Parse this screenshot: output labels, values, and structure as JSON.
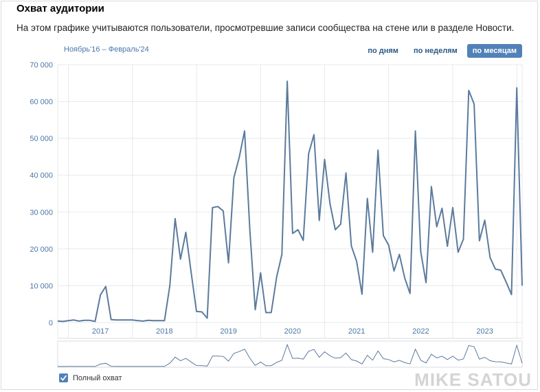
{
  "header": {
    "title": "Охват аудитории",
    "description": "На этом графике учитываются пользователи, просмотревшие записи сообщества на стене или в разделе Новости."
  },
  "period_label": "Ноябрь'16 – Февраль'24",
  "range_buttons": [
    {
      "label": "по дням",
      "active": false
    },
    {
      "label": "по неделям",
      "active": false
    },
    {
      "label": "по месяцам",
      "active": true
    }
  ],
  "legend": {
    "label": "Полный охват",
    "checked": true
  },
  "watermark": "MIKE SATOU",
  "colors": {
    "line": "#5b7a9c",
    "accent": "#5181b8",
    "grid": "#e5e9ee",
    "axis_text": "#4a76a8"
  },
  "chart_data": {
    "type": "line",
    "title": "",
    "xlabel": "",
    "ylabel": "",
    "ylim": [
      0,
      70000
    ],
    "yticks": [
      "0",
      "10 000",
      "20 000",
      "30 000",
      "40 000",
      "50 000",
      "60 000",
      "70 000"
    ],
    "xticks": [
      "2017",
      "2018",
      "2019",
      "2020",
      "2021",
      "2022",
      "2023"
    ],
    "grid": true,
    "series": [
      {
        "name": "Полный охват",
        "x": [
          "2016-11",
          "2016-12",
          "2017-01",
          "2017-02",
          "2017-03",
          "2017-04",
          "2017-05",
          "2017-06",
          "2017-07",
          "2017-08",
          "2017-09",
          "2017-10",
          "2017-11",
          "2017-12",
          "2018-01",
          "2018-02",
          "2018-03",
          "2018-04",
          "2018-05",
          "2018-06",
          "2018-07",
          "2018-08",
          "2018-09",
          "2018-10",
          "2018-11",
          "2018-12",
          "2019-01",
          "2019-02",
          "2019-03",
          "2019-04",
          "2019-05",
          "2019-06",
          "2019-07",
          "2019-08",
          "2019-09",
          "2019-10",
          "2019-11",
          "2019-12",
          "2020-01",
          "2020-02",
          "2020-03",
          "2020-04",
          "2020-05",
          "2020-06",
          "2020-07",
          "2020-08",
          "2020-09",
          "2020-10",
          "2020-11",
          "2020-12",
          "2021-01",
          "2021-02",
          "2021-03",
          "2021-04",
          "2021-05",
          "2021-06",
          "2021-07",
          "2021-08",
          "2021-09",
          "2021-10",
          "2021-11",
          "2021-12",
          "2022-01",
          "2022-02",
          "2022-03",
          "2022-04",
          "2022-05",
          "2022-06",
          "2022-07",
          "2022-08",
          "2022-09",
          "2022-10",
          "2022-11",
          "2022-12",
          "2023-01",
          "2023-02",
          "2023-03",
          "2023-04",
          "2023-05",
          "2023-06",
          "2023-07",
          "2023-08",
          "2023-09",
          "2023-10",
          "2023-11",
          "2023-12",
          "2024-01",
          "2024-02"
        ],
        "values": [
          400,
          300,
          500,
          700,
          400,
          600,
          600,
          300,
          7500,
          9800,
          800,
          700,
          700,
          700,
          700,
          500,
          400,
          600,
          500,
          500,
          500,
          10000,
          28200,
          17200,
          24500,
          13500,
          3000,
          2900,
          1200,
          31200,
          31500,
          30300,
          16200,
          39300,
          44800,
          52000,
          25000,
          3500,
          13500,
          2700,
          2700,
          12300,
          18500,
          65500,
          24200,
          25200,
          22300,
          45800,
          51000,
          27700,
          44300,
          32300,
          25200,
          26700,
          40600,
          20800,
          16600,
          7700,
          33700,
          19100,
          46800,
          23600,
          21000,
          14000,
          18500,
          12100,
          7900,
          52000,
          19200,
          10800,
          36900,
          26000,
          31000,
          20700,
          31200,
          19100,
          22600,
          63000,
          59300,
          22200,
          27800,
          17600,
          14500,
          14200,
          11000,
          7600,
          63700,
          10000
        ]
      }
    ]
  }
}
